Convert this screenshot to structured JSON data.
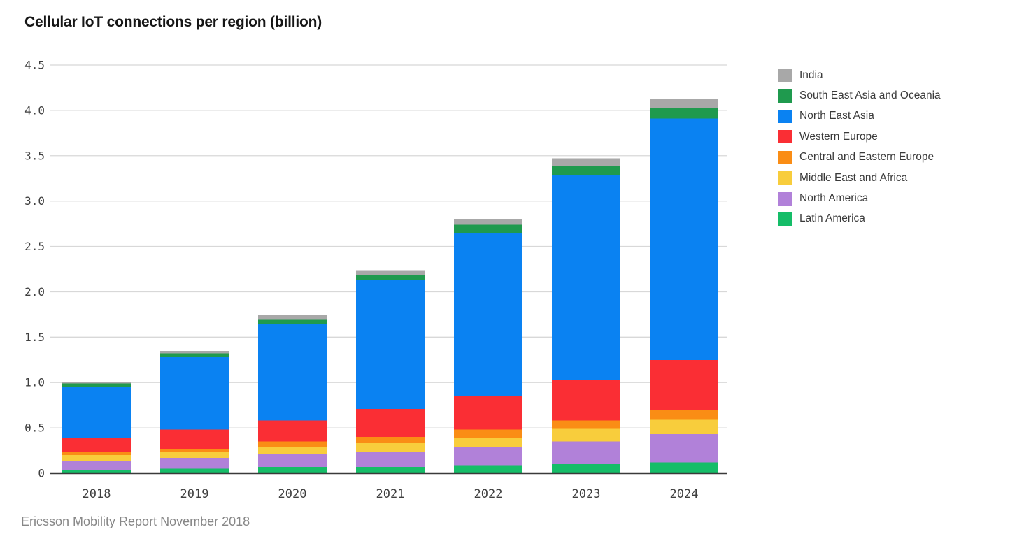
{
  "title": "Cellular IoT connections per region (billion)",
  "source": "Ericsson Mobility Report November 2018",
  "chart_data": {
    "type": "bar",
    "stacked": true,
    "title": "Cellular IoT connections per region (billion)",
    "xlabel": "",
    "ylabel": "",
    "categories": [
      "2018",
      "2019",
      "2020",
      "2021",
      "2022",
      "2023",
      "2024"
    ],
    "series": [
      {
        "name": "Latin America",
        "color": "#15bd68",
        "values": [
          0.03,
          0.05,
          0.07,
          0.07,
          0.09,
          0.1,
          0.12
        ]
      },
      {
        "name": "North America",
        "color": "#b181d9",
        "values": [
          0.11,
          0.12,
          0.14,
          0.17,
          0.2,
          0.25,
          0.31
        ]
      },
      {
        "name": "Middle East and Africa",
        "color": "#f8cd3c",
        "values": [
          0.06,
          0.06,
          0.08,
          0.09,
          0.1,
          0.14,
          0.16
        ]
      },
      {
        "name": "Central and Eastern Europe",
        "color": "#fa8d15",
        "values": [
          0.04,
          0.04,
          0.06,
          0.07,
          0.09,
          0.09,
          0.11
        ]
      },
      {
        "name": "Western Europe",
        "color": "#fa2e34",
        "values": [
          0.15,
          0.21,
          0.23,
          0.31,
          0.37,
          0.45,
          0.55
        ]
      },
      {
        "name": "North East Asia",
        "color": "#0a82f2",
        "values": [
          0.56,
          0.8,
          1.07,
          1.42,
          1.8,
          2.26,
          2.66
        ]
      },
      {
        "name": "South East Asia and Oceania",
        "color": "#1f9a4e",
        "values": [
          0.04,
          0.04,
          0.04,
          0.06,
          0.09,
          0.1,
          0.12
        ]
      },
      {
        "name": "India",
        "color": "#a8a8a8",
        "values": [
          0.01,
          0.03,
          0.05,
          0.05,
          0.06,
          0.08,
          0.1
        ]
      }
    ],
    "legend_order": [
      "India",
      "South East Asia and Oceania",
      "North East Asia",
      "Western Europe",
      "Central and Eastern Europe",
      "Middle East and Africa",
      "North America",
      "Latin America"
    ],
    "legend_position": "right",
    "grid": true,
    "ylim": [
      0,
      4.5
    ],
    "ytick_step": 0.5,
    "yticks": [
      "0",
      "0.5",
      "1.0",
      "1.5",
      "2.0",
      "2.5",
      "3.0",
      "3.5",
      "4.0",
      "4.5"
    ],
    "grid_color": "#d8d8d8",
    "axis_color": "#3a3a3a",
    "tick_color": "#3f3f3f"
  }
}
